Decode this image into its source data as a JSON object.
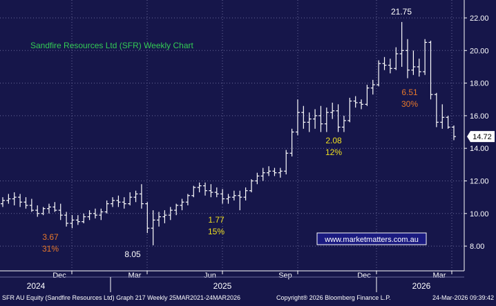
{
  "chart_data": {
    "type": "ohlc",
    "title": "Sandfire Resources Ltd (SFR) Weekly Chart",
    "y_axis": {
      "side": "right",
      "ticks": [
        8.0,
        10.0,
        12.0,
        14.0,
        16.0,
        18.0,
        20.0,
        22.0
      ],
      "tick_labels": [
        "8.00",
        "10.00",
        "12.00",
        "14.00",
        "16.00",
        "18.00",
        "20.00",
        "22.00"
      ],
      "ylim": [
        7.2,
        22.9
      ]
    },
    "x_axis": {
      "month_labels": [
        "Dec",
        "Mar",
        "Jun",
        "Sep",
        "Dec",
        "Mar"
      ],
      "year_labels": [
        "2024",
        "2025",
        "2026"
      ]
    },
    "grid": true,
    "last_price": "14.72",
    "watermark": "www.marketmatters.com.au",
    "annotations": [
      {
        "text": "3.67",
        "color": "#e8782a"
      },
      {
        "text": "31%",
        "color": "#e8782a"
      },
      {
        "text": "8.05",
        "color": "#ffffff"
      },
      {
        "text": "1.77",
        "color": "#f0e020"
      },
      {
        "text": "15%",
        "color": "#f0e020"
      },
      {
        "text": "2.08",
        "color": "#f0e020"
      },
      {
        "text": "12%",
        "color": "#f0e020"
      },
      {
        "text": "21.75",
        "color": "#ffffff"
      },
      {
        "text": "6.51",
        "color": "#e8782a"
      },
      {
        "text": "30%",
        "color": "#e8782a"
      }
    ],
    "weeks": [
      {
        "o": 10.6,
        "h": 11.0,
        "l": 10.4,
        "c": 10.8
      },
      {
        "o": 10.8,
        "h": 11.2,
        "l": 10.6,
        "c": 10.9
      },
      {
        "o": 10.9,
        "h": 11.3,
        "l": 10.5,
        "c": 11.0
      },
      {
        "o": 11.0,
        "h": 11.2,
        "l": 10.4,
        "c": 10.7
      },
      {
        "o": 10.7,
        "h": 11.0,
        "l": 10.3,
        "c": 10.5
      },
      {
        "o": 10.5,
        "h": 10.9,
        "l": 10.1,
        "c": 10.2
      },
      {
        "o": 10.2,
        "h": 10.5,
        "l": 9.8,
        "c": 10.0
      },
      {
        "o": 10.0,
        "h": 10.4,
        "l": 9.9,
        "c": 10.3
      },
      {
        "o": 10.3,
        "h": 10.6,
        "l": 10.0,
        "c": 10.4
      },
      {
        "o": 10.4,
        "h": 10.7,
        "l": 10.1,
        "c": 10.2
      },
      {
        "o": 10.2,
        "h": 10.6,
        "l": 9.6,
        "c": 9.9
      },
      {
        "o": 9.9,
        "h": 10.1,
        "l": 9.2,
        "c": 9.4
      },
      {
        "o": 9.4,
        "h": 9.9,
        "l": 9.1,
        "c": 9.6
      },
      {
        "o": 9.6,
        "h": 9.9,
        "l": 9.3,
        "c": 9.5
      },
      {
        "o": 9.5,
        "h": 10.0,
        "l": 9.4,
        "c": 9.8
      },
      {
        "o": 9.8,
        "h": 10.2,
        "l": 9.6,
        "c": 10.0
      },
      {
        "o": 10.0,
        "h": 10.3,
        "l": 9.7,
        "c": 9.9
      },
      {
        "o": 9.9,
        "h": 10.3,
        "l": 9.6,
        "c": 10.1
      },
      {
        "o": 10.1,
        "h": 10.8,
        "l": 10.0,
        "c": 10.6
      },
      {
        "o": 10.6,
        "h": 11.0,
        "l": 10.4,
        "c": 10.8
      },
      {
        "o": 10.8,
        "h": 11.1,
        "l": 10.4,
        "c": 10.7
      },
      {
        "o": 10.7,
        "h": 11.0,
        "l": 10.3,
        "c": 10.6
      },
      {
        "o": 10.6,
        "h": 11.3,
        "l": 10.5,
        "c": 11.0
      },
      {
        "o": 11.0,
        "h": 11.4,
        "l": 10.7,
        "c": 11.2
      },
      {
        "o": 11.2,
        "h": 11.8,
        "l": 10.3,
        "c": 10.6
      },
      {
        "o": 10.6,
        "h": 10.7,
        "l": 8.8,
        "c": 9.1
      },
      {
        "o": 9.1,
        "h": 10.2,
        "l": 8.05,
        "c": 9.6
      },
      {
        "o": 9.6,
        "h": 10.1,
        "l": 9.2,
        "c": 9.8
      },
      {
        "o": 9.8,
        "h": 10.2,
        "l": 9.4,
        "c": 9.9
      },
      {
        "o": 9.9,
        "h": 10.4,
        "l": 9.6,
        "c": 10.2
      },
      {
        "o": 10.2,
        "h": 10.6,
        "l": 9.9,
        "c": 10.5
      },
      {
        "o": 10.5,
        "h": 10.9,
        "l": 10.2,
        "c": 10.7
      },
      {
        "o": 10.7,
        "h": 11.2,
        "l": 10.5,
        "c": 11.1
      },
      {
        "o": 11.1,
        "h": 11.7,
        "l": 11.0,
        "c": 11.6
      },
      {
        "o": 11.6,
        "h": 11.9,
        "l": 11.3,
        "c": 11.7
      },
      {
        "o": 11.7,
        "h": 11.9,
        "l": 11.1,
        "c": 11.4
      },
      {
        "o": 11.4,
        "h": 11.8,
        "l": 11.0,
        "c": 11.3
      },
      {
        "o": 11.3,
        "h": 11.6,
        "l": 11.0,
        "c": 11.2
      },
      {
        "o": 11.2,
        "h": 11.5,
        "l": 10.6,
        "c": 10.9
      },
      {
        "o": 10.9,
        "h": 11.2,
        "l": 10.6,
        "c": 11.0
      },
      {
        "o": 11.0,
        "h": 11.4,
        "l": 10.8,
        "c": 11.1
      },
      {
        "o": 11.1,
        "h": 11.4,
        "l": 10.2,
        "c": 11.0
      },
      {
        "o": 11.0,
        "h": 11.6,
        "l": 10.8,
        "c": 11.4
      },
      {
        "o": 11.4,
        "h": 12.1,
        "l": 11.3,
        "c": 12.0
      },
      {
        "o": 12.0,
        "h": 12.5,
        "l": 11.8,
        "c": 12.3
      },
      {
        "o": 12.3,
        "h": 12.8,
        "l": 12.0,
        "c": 12.5
      },
      {
        "o": 12.5,
        "h": 12.9,
        "l": 12.3,
        "c": 12.6
      },
      {
        "o": 12.6,
        "h": 12.8,
        "l": 12.3,
        "c": 12.5
      },
      {
        "o": 12.5,
        "h": 12.8,
        "l": 12.2,
        "c": 12.6
      },
      {
        "o": 12.6,
        "h": 13.9,
        "l": 12.4,
        "c": 13.7
      },
      {
        "o": 13.7,
        "h": 15.2,
        "l": 13.5,
        "c": 15.0
      },
      {
        "o": 15.0,
        "h": 17.0,
        "l": 14.8,
        "c": 16.2
      },
      {
        "o": 16.2,
        "h": 16.6,
        "l": 15.2,
        "c": 15.6
      },
      {
        "o": 15.6,
        "h": 16.2,
        "l": 15.0,
        "c": 15.8
      },
      {
        "o": 15.8,
        "h": 16.4,
        "l": 15.2,
        "c": 16.0
      },
      {
        "o": 16.0,
        "h": 16.6,
        "l": 15.0,
        "c": 15.5
      },
      {
        "o": 15.5,
        "h": 16.5,
        "l": 15.0,
        "c": 16.2
      },
      {
        "o": 16.2,
        "h": 16.8,
        "l": 15.8,
        "c": 16.3
      },
      {
        "o": 16.3,
        "h": 16.7,
        "l": 15.0,
        "c": 15.3
      },
      {
        "o": 15.3,
        "h": 16.0,
        "l": 15.0,
        "c": 15.7
      },
      {
        "o": 15.7,
        "h": 17.1,
        "l": 15.6,
        "c": 16.9
      },
      {
        "o": 16.9,
        "h": 17.2,
        "l": 16.5,
        "c": 16.8
      },
      {
        "o": 16.8,
        "h": 17.0,
        "l": 16.4,
        "c": 16.7
      },
      {
        "o": 16.7,
        "h": 17.9,
        "l": 16.6,
        "c": 17.7
      },
      {
        "o": 17.7,
        "h": 18.2,
        "l": 17.3,
        "c": 17.9
      },
      {
        "o": 17.9,
        "h": 19.4,
        "l": 17.8,
        "c": 19.2
      },
      {
        "o": 19.2,
        "h": 19.6,
        "l": 18.8,
        "c": 19.1
      },
      {
        "o": 19.1,
        "h": 19.5,
        "l": 18.6,
        "c": 18.9
      },
      {
        "o": 18.9,
        "h": 20.2,
        "l": 18.8,
        "c": 19.8
      },
      {
        "o": 19.8,
        "h": 21.75,
        "l": 19.0,
        "c": 20.0
      },
      {
        "o": 20.0,
        "h": 20.7,
        "l": 18.3,
        "c": 18.8
      },
      {
        "o": 18.8,
        "h": 20.0,
        "l": 18.5,
        "c": 19.0
      },
      {
        "o": 19.0,
        "h": 19.5,
        "l": 18.4,
        "c": 18.7
      },
      {
        "o": 18.7,
        "h": 20.7,
        "l": 18.5,
        "c": 20.5
      },
      {
        "o": 20.5,
        "h": 20.6,
        "l": 17.0,
        "c": 17.3
      },
      {
        "o": 17.3,
        "h": 17.4,
        "l": 15.3,
        "c": 15.6
      },
      {
        "o": 15.6,
        "h": 16.7,
        "l": 15.2,
        "c": 15.9
      },
      {
        "o": 15.9,
        "h": 16.0,
        "l": 15.2,
        "c": 15.3
      },
      {
        "o": 15.3,
        "h": 15.4,
        "l": 14.5,
        "c": 14.72
      }
    ]
  },
  "footer": {
    "left_text": "SFR AU Equity (Sandfire Resources Ltd) Graph 217 Weekly 25MAR2021-24MAR2026",
    "copyright": "Copyright® 2026 Bloomberg Finance L.P.",
    "timestamp": "24-Mar-2026 09:39:42"
  },
  "colors": {
    "background": "#16164a",
    "grid": "#6a6a9a",
    "bars": "#ffffff",
    "title": "#33cc55",
    "watermark_border": "#ffffff",
    "watermark_text": "#ffffff",
    "watermark_bg": "#1a1a80"
  }
}
